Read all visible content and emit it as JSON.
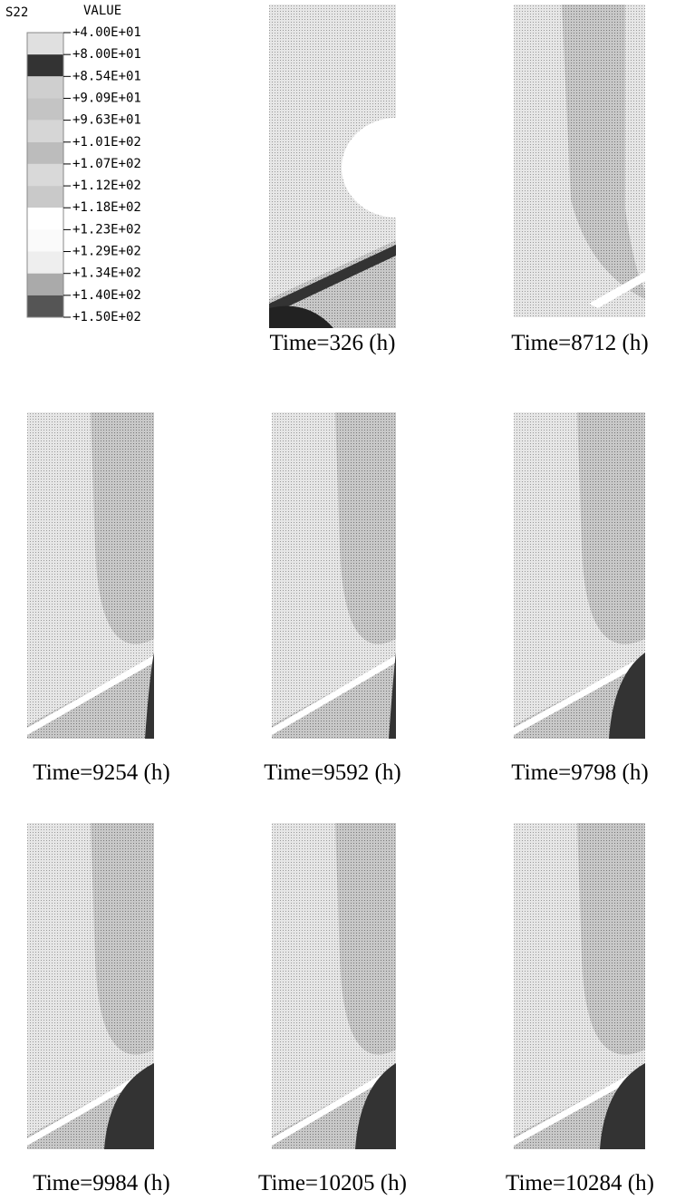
{
  "legend": {
    "title": "S22",
    "subtitle": "VALUE",
    "labels": [
      "+4.00E+01",
      "+8.00E+01",
      "+8.54E+01",
      "+9.09E+01",
      "+9.63E+01",
      "+1.01E+02",
      "+1.07E+02",
      "+1.12E+02",
      "+1.18E+02",
      "+1.23E+02",
      "+1.29E+02",
      "+1.34E+02",
      "+1.40E+02",
      "+1.50E+02"
    ]
  },
  "panels": [
    {
      "caption": "Time=326 (h)"
    },
    {
      "caption": "Time=8712 (h)"
    },
    {
      "caption": "Time=9254 (h)"
    },
    {
      "caption": "Time=9592 (h)"
    },
    {
      "caption": "Time=9798 (h)"
    },
    {
      "caption": "Time=9984 (h)"
    },
    {
      "caption": "Time=10205 (h)"
    },
    {
      "caption": "Time=10284 (h)"
    }
  ]
}
